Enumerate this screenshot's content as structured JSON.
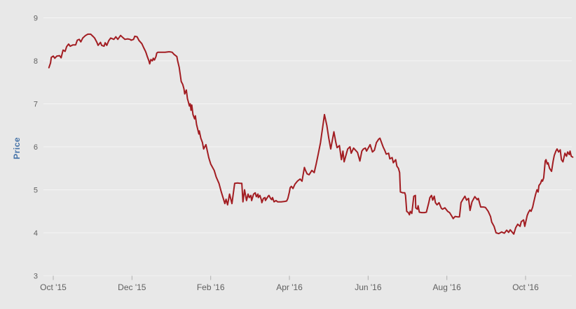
{
  "colors": {
    "background": "#e8e8e8",
    "gridline": "#f5f5f5",
    "tick_mark": "#b0b0b0",
    "tick_label": "#606060",
    "y_axis_title": "#4572a7",
    "series_line": "#a21d22"
  },
  "chart_data": {
    "type": "line",
    "title": "",
    "xlabel": "",
    "ylabel": "Price",
    "legend": "none",
    "grid": "horizontal",
    "ylim": [
      3,
      9
    ],
    "y_ticks": [
      3,
      4,
      5,
      6,
      7,
      8,
      9
    ],
    "x_unit": "months since Oct 2015",
    "xlim": [
      -0.25,
      13.25
    ],
    "x_tick_positions_months": [
      0,
      2,
      4,
      6,
      8,
      10,
      12
    ],
    "x_tick_labels": [
      "Oct '15",
      "Dec '15",
      "Feb '16",
      "Apr '16",
      "Jun '16",
      "Aug '16",
      "Oct '16"
    ],
    "series": [
      {
        "name": "Price",
        "color": "#a21d22",
        "points": [
          [
            -0.11,
            7.84
          ],
          [
            -0.07,
            7.95
          ],
          [
            -0.05,
            8.08
          ],
          [
            0,
            8.11
          ],
          [
            0.04,
            8.06
          ],
          [
            0.09,
            8.11
          ],
          [
            0.16,
            8.12
          ],
          [
            0.2,
            8.07
          ],
          [
            0.25,
            8.25
          ],
          [
            0.3,
            8.22
          ],
          [
            0.34,
            8.33
          ],
          [
            0.39,
            8.39
          ],
          [
            0.43,
            8.34
          ],
          [
            0.5,
            8.37
          ],
          [
            0.57,
            8.37
          ],
          [
            0.61,
            8.48
          ],
          [
            0.66,
            8.5
          ],
          [
            0.7,
            8.44
          ],
          [
            0.75,
            8.53
          ],
          [
            0.82,
            8.59
          ],
          [
            0.88,
            8.62
          ],
          [
            0.95,
            8.62
          ],
          [
            1.02,
            8.56
          ],
          [
            1.05,
            8.53
          ],
          [
            1.11,
            8.43
          ],
          [
            1.14,
            8.36
          ],
          [
            1.2,
            8.43
          ],
          [
            1.23,
            8.36
          ],
          [
            1.29,
            8.34
          ],
          [
            1.32,
            8.42
          ],
          [
            1.36,
            8.36
          ],
          [
            1.41,
            8.47
          ],
          [
            1.46,
            8.53
          ],
          [
            1.54,
            8.5
          ],
          [
            1.59,
            8.56
          ],
          [
            1.64,
            8.5
          ],
          [
            1.71,
            8.59
          ],
          [
            1.77,
            8.54
          ],
          [
            1.82,
            8.5
          ],
          [
            1.89,
            8.51
          ],
          [
            1.95,
            8.5
          ],
          [
            1.98,
            8.48
          ],
          [
            2.04,
            8.5
          ],
          [
            2.07,
            8.57
          ],
          [
            2.13,
            8.56
          ],
          [
            2.18,
            8.47
          ],
          [
            2.25,
            8.4
          ],
          [
            2.3,
            8.3
          ],
          [
            2.34,
            8.23
          ],
          [
            2.36,
            8.18
          ],
          [
            2.39,
            8.1
          ],
          [
            2.43,
            8
          ],
          [
            2.45,
            7.93
          ],
          [
            2.48,
            8.03
          ],
          [
            2.52,
            8
          ],
          [
            2.54,
            8.06
          ],
          [
            2.57,
            8.02
          ],
          [
            2.61,
            8.1
          ],
          [
            2.63,
            8.18
          ],
          [
            2.66,
            8.2
          ],
          [
            2.75,
            8.2
          ],
          [
            2.84,
            8.2
          ],
          [
            2.93,
            8.21
          ],
          [
            2.96,
            8.21
          ],
          [
            3.02,
            8.2
          ],
          [
            3.07,
            8.15
          ],
          [
            3.11,
            8.12
          ],
          [
            3.14,
            8.1
          ],
          [
            3.16,
            8
          ],
          [
            3.2,
            7.85
          ],
          [
            3.23,
            7.66
          ],
          [
            3.25,
            7.52
          ],
          [
            3.29,
            7.45
          ],
          [
            3.32,
            7.35
          ],
          [
            3.34,
            7.23
          ],
          [
            3.38,
            7.32
          ],
          [
            3.41,
            7.12
          ],
          [
            3.43,
            7.05
          ],
          [
            3.46,
            6.95
          ],
          [
            3.48,
            7
          ],
          [
            3.5,
            6.85
          ],
          [
            3.52,
            6.97
          ],
          [
            3.55,
            6.75
          ],
          [
            3.59,
            6.65
          ],
          [
            3.61,
            6.72
          ],
          [
            3.64,
            6.52
          ],
          [
            3.7,
            6.3
          ],
          [
            3.71,
            6.37
          ],
          [
            3.75,
            6.2
          ],
          [
            3.79,
            6.1
          ],
          [
            3.82,
            5.95
          ],
          [
            3.88,
            6.05
          ],
          [
            3.95,
            5.75
          ],
          [
            4,
            5.6
          ],
          [
            4.09,
            5.45
          ],
          [
            4.14,
            5.3
          ],
          [
            4.21,
            5.15
          ],
          [
            4.27,
            4.95
          ],
          [
            4.36,
            4.68
          ],
          [
            4.39,
            4.78
          ],
          [
            4.43,
            4.65
          ],
          [
            4.48,
            4.9
          ],
          [
            4.54,
            4.68
          ],
          [
            4.61,
            5.15
          ],
          [
            4.68,
            5.16
          ],
          [
            4.75,
            5.15
          ],
          [
            4.79,
            5.15
          ],
          [
            4.82,
            4.72
          ],
          [
            4.86,
            5
          ],
          [
            4.91,
            4.75
          ],
          [
            4.95,
            4.9
          ],
          [
            4.98,
            4.82
          ],
          [
            5.02,
            4.87
          ],
          [
            5.04,
            4.75
          ],
          [
            5.09,
            4.9
          ],
          [
            5.13,
            4.93
          ],
          [
            5.16,
            4.84
          ],
          [
            5.2,
            4.9
          ],
          [
            5.21,
            4.82
          ],
          [
            5.25,
            4.87
          ],
          [
            5.29,
            4.76
          ],
          [
            5.3,
            4.7
          ],
          [
            5.34,
            4.8
          ],
          [
            5.38,
            4.82
          ],
          [
            5.39,
            4.75
          ],
          [
            5.46,
            4.85
          ],
          [
            5.48,
            4.87
          ],
          [
            5.52,
            4.8
          ],
          [
            5.55,
            4.77
          ],
          [
            5.57,
            4.82
          ],
          [
            5.61,
            4.72
          ],
          [
            5.66,
            4.75
          ],
          [
            5.7,
            4.72
          ],
          [
            5.79,
            4.72
          ],
          [
            5.88,
            4.73
          ],
          [
            5.93,
            4.74
          ],
          [
            5.96,
            4.8
          ],
          [
            6,
            4.95
          ],
          [
            6.02,
            5.05
          ],
          [
            6.05,
            5.08
          ],
          [
            6.09,
            5.03
          ],
          [
            6.14,
            5.13
          ],
          [
            6.2,
            5.2
          ],
          [
            6.27,
            5.25
          ],
          [
            6.32,
            5.2
          ],
          [
            6.38,
            5.52
          ],
          [
            6.41,
            5.45
          ],
          [
            6.45,
            5.37
          ],
          [
            6.5,
            5.35
          ],
          [
            6.57,
            5.45
          ],
          [
            6.63,
            5.4
          ],
          [
            6.68,
            5.6
          ],
          [
            6.73,
            5.82
          ],
          [
            6.79,
            6.1
          ],
          [
            6.82,
            6.3
          ],
          [
            6.86,
            6.55
          ],
          [
            6.89,
            6.75
          ],
          [
            6.95,
            6.5
          ],
          [
            7,
            6.2
          ],
          [
            7.05,
            5.95
          ],
          [
            7.13,
            6.35
          ],
          [
            7.18,
            6.1
          ],
          [
            7.21,
            5.98
          ],
          [
            7.27,
            6.03
          ],
          [
            7.32,
            5.7
          ],
          [
            7.36,
            5.9
          ],
          [
            7.39,
            5.65
          ],
          [
            7.45,
            5.85
          ],
          [
            7.48,
            5.95
          ],
          [
            7.54,
            6
          ],
          [
            7.57,
            5.85
          ],
          [
            7.63,
            5.97
          ],
          [
            7.68,
            5.92
          ],
          [
            7.73,
            5.87
          ],
          [
            7.79,
            5.67
          ],
          [
            7.84,
            5.9
          ],
          [
            7.88,
            5.95
          ],
          [
            7.93,
            5.97
          ],
          [
            7.96,
            5.9
          ],
          [
            8.02,
            6
          ],
          [
            8.05,
            6.05
          ],
          [
            8.11,
            5.88
          ],
          [
            8.16,
            5.92
          ],
          [
            8.21,
            6.1
          ],
          [
            8.27,
            6.18
          ],
          [
            8.3,
            6.2
          ],
          [
            8.38,
            6
          ],
          [
            8.43,
            5.9
          ],
          [
            8.46,
            5.83
          ],
          [
            8.52,
            5.85
          ],
          [
            8.55,
            5.72
          ],
          [
            8.61,
            5.75
          ],
          [
            8.64,
            5.63
          ],
          [
            8.7,
            5.7
          ],
          [
            8.73,
            5.55
          ],
          [
            8.77,
            5.5
          ],
          [
            8.8,
            5.4
          ],
          [
            8.82,
            4.95
          ],
          [
            8.88,
            4.93
          ],
          [
            8.93,
            4.93
          ],
          [
            8.95,
            4.87
          ],
          [
            8.98,
            4.5
          ],
          [
            9.02,
            4.47
          ],
          [
            9.05,
            4.42
          ],
          [
            9.07,
            4.5
          ],
          [
            9.11,
            4.45
          ],
          [
            9.16,
            4.85
          ],
          [
            9.2,
            4.87
          ],
          [
            9.21,
            4.58
          ],
          [
            9.25,
            4.55
          ],
          [
            9.27,
            4.63
          ],
          [
            9.3,
            4.48
          ],
          [
            9.36,
            4.47
          ],
          [
            9.43,
            4.47
          ],
          [
            9.48,
            4.48
          ],
          [
            9.54,
            4.7
          ],
          [
            9.57,
            4.82
          ],
          [
            9.61,
            4.87
          ],
          [
            9.64,
            4.76
          ],
          [
            9.68,
            4.85
          ],
          [
            9.71,
            4.7
          ],
          [
            9.75,
            4.65
          ],
          [
            9.8,
            4.7
          ],
          [
            9.86,
            4.57
          ],
          [
            9.89,
            4.55
          ],
          [
            9.95,
            4.58
          ],
          [
            10.02,
            4.5
          ],
          [
            10.07,
            4.47
          ],
          [
            10.13,
            4.38
          ],
          [
            10.16,
            4.33
          ],
          [
            10.21,
            4.38
          ],
          [
            10.27,
            4.37
          ],
          [
            10.32,
            4.37
          ],
          [
            10.36,
            4.7
          ],
          [
            10.41,
            4.78
          ],
          [
            10.46,
            4.85
          ],
          [
            10.5,
            4.76
          ],
          [
            10.55,
            4.8
          ],
          [
            10.59,
            4.52
          ],
          [
            10.64,
            4.72
          ],
          [
            10.71,
            4.84
          ],
          [
            10.77,
            4.77
          ],
          [
            10.8,
            4.8
          ],
          [
            10.86,
            4.6
          ],
          [
            10.93,
            4.6
          ],
          [
            10.98,
            4.59
          ],
          [
            11.05,
            4.5
          ],
          [
            11.11,
            4.38
          ],
          [
            11.14,
            4.25
          ],
          [
            11.2,
            4.15
          ],
          [
            11.25,
            4
          ],
          [
            11.32,
            3.98
          ],
          [
            11.39,
            4.02
          ],
          [
            11.46,
            3.99
          ],
          [
            11.52,
            4.06
          ],
          [
            11.57,
            4.01
          ],
          [
            11.61,
            4.07
          ],
          [
            11.7,
            3.97
          ],
          [
            11.75,
            4.12
          ],
          [
            11.8,
            4.2
          ],
          [
            11.86,
            4.15
          ],
          [
            11.89,
            4.26
          ],
          [
            11.95,
            4.3
          ],
          [
            11.98,
            4.15
          ],
          [
            12.04,
            4.4
          ],
          [
            12.07,
            4.47
          ],
          [
            12.11,
            4.53
          ],
          [
            12.14,
            4.5
          ],
          [
            12.18,
            4.6
          ],
          [
            12.21,
            4.72
          ],
          [
            12.25,
            4.88
          ],
          [
            12.29,
            5
          ],
          [
            12.32,
            4.95
          ],
          [
            12.34,
            5.1
          ],
          [
            12.38,
            5.15
          ],
          [
            12.41,
            5.23
          ],
          [
            12.43,
            5.2
          ],
          [
            12.46,
            5.28
          ],
          [
            12.5,
            5.67
          ],
          [
            12.52,
            5.7
          ],
          [
            12.55,
            5.6
          ],
          [
            12.57,
            5.63
          ],
          [
            12.61,
            5.5
          ],
          [
            12.66,
            5.43
          ],
          [
            12.7,
            5.67
          ],
          [
            12.73,
            5.8
          ],
          [
            12.77,
            5.9
          ],
          [
            12.8,
            5.95
          ],
          [
            12.84,
            5.88
          ],
          [
            12.88,
            5.93
          ],
          [
            12.91,
            5.7
          ],
          [
            12.95,
            5.65
          ],
          [
            13,
            5.85
          ],
          [
            13.04,
            5.78
          ],
          [
            13.07,
            5.88
          ],
          [
            13.11,
            5.82
          ],
          [
            13.13,
            5.9
          ],
          [
            13.16,
            5.78
          ],
          [
            13.2,
            5.76
          ]
        ]
      }
    ]
  }
}
